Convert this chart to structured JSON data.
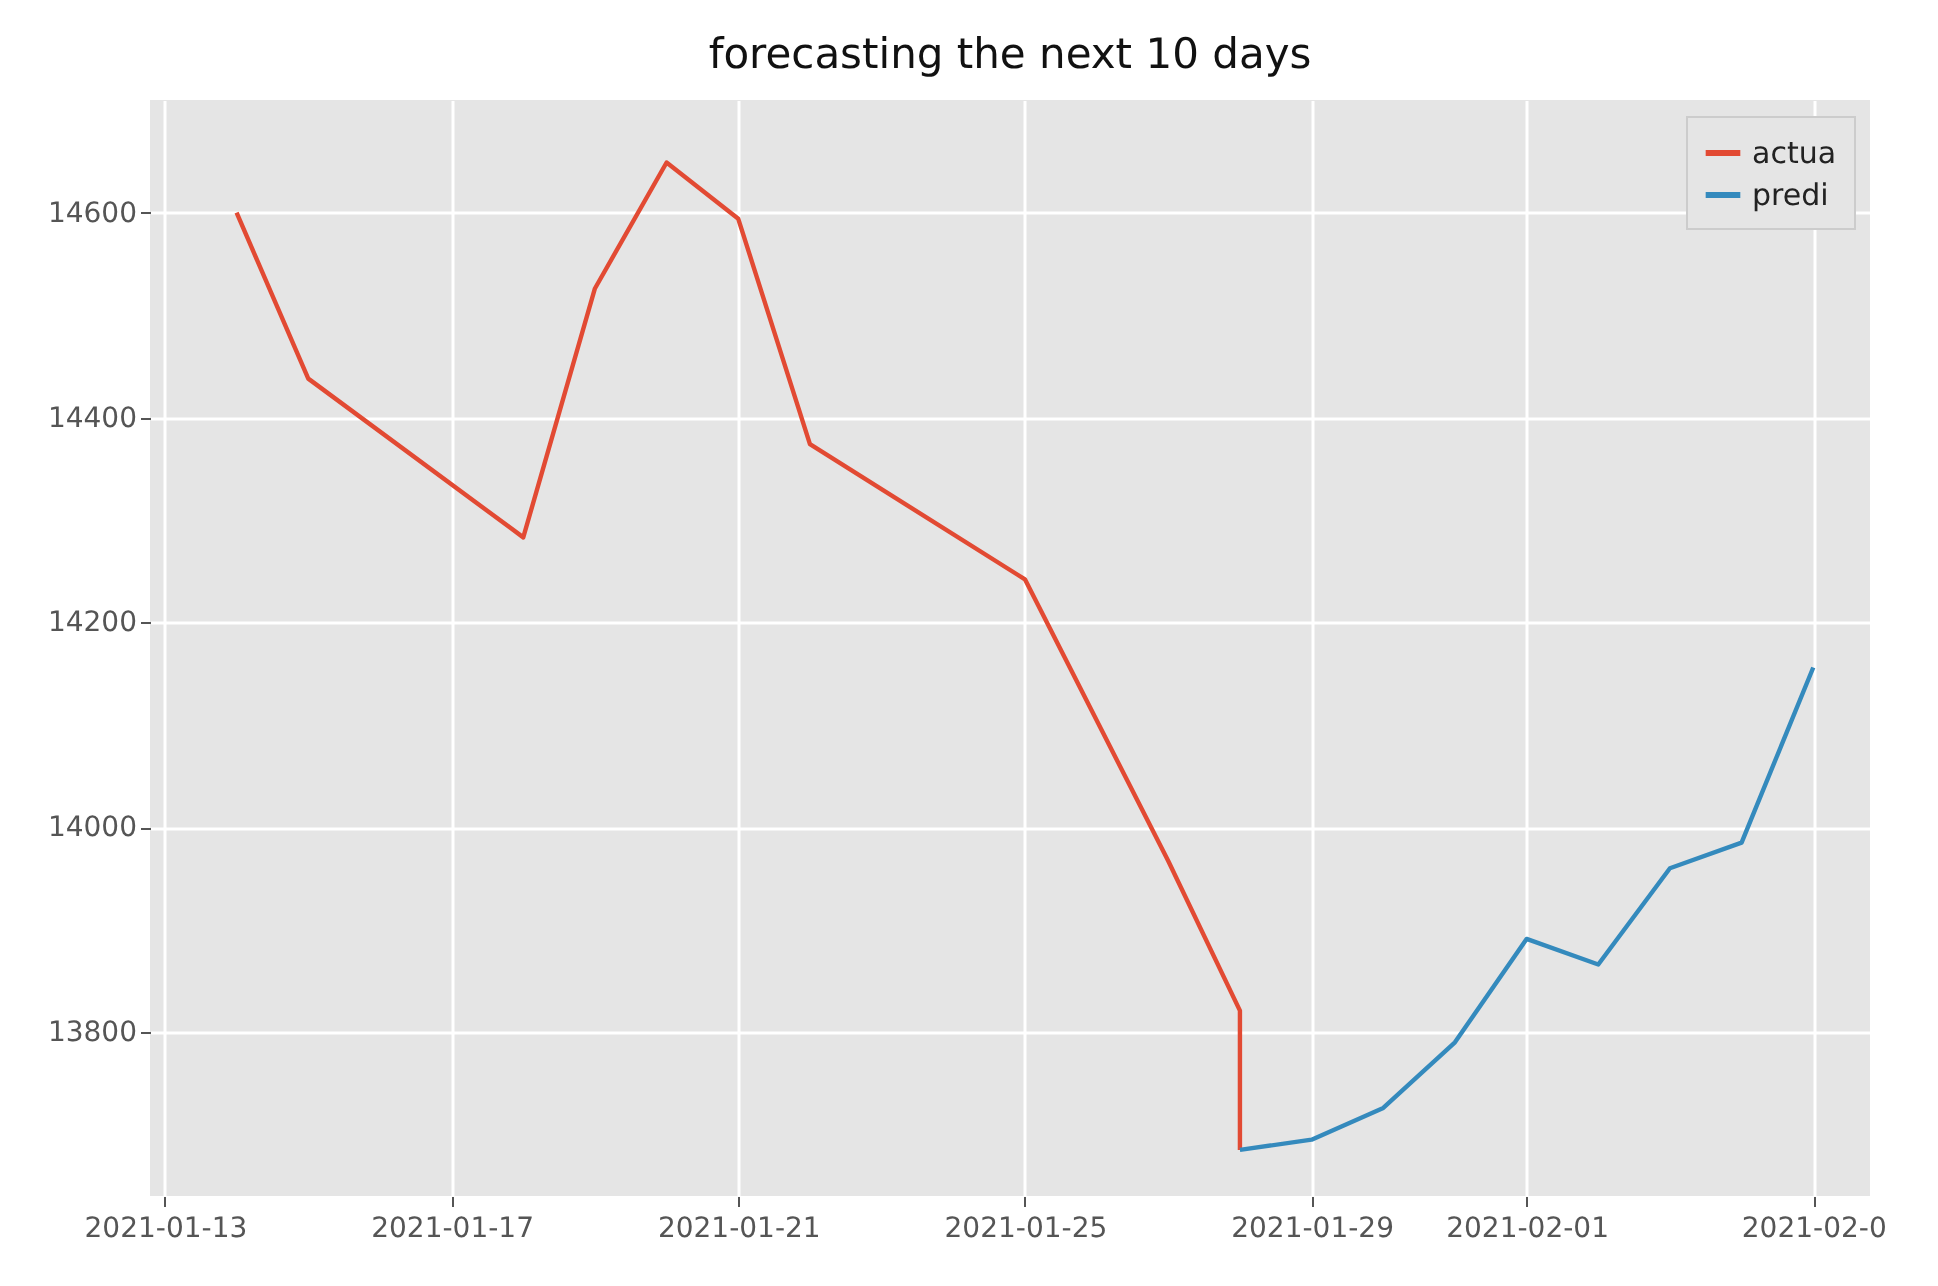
{
  "chart_data": {
    "type": "line",
    "title": "forecasting the next 10 days",
    "xlim": [
      "2021-01-12T19:00",
      "2021-02-05T19:00"
    ],
    "ylim": [
      13640,
      14710
    ],
    "xticks": [
      {
        "value": "2021-01-13",
        "label": "2021-01-13"
      },
      {
        "value": "2021-01-17",
        "label": "2021-01-17"
      },
      {
        "value": "2021-01-21",
        "label": "2021-01-21"
      },
      {
        "value": "2021-01-25",
        "label": "2021-01-25"
      },
      {
        "value": "2021-01-29",
        "label": "2021-01-29"
      },
      {
        "value": "2021-02-01",
        "label": "2021-02-01"
      },
      {
        "value": "2021-02-05",
        "label": "2021-02-0"
      }
    ],
    "yticks": [
      13800,
      14000,
      14200,
      14400,
      14600
    ],
    "grid": true,
    "legend": "top right",
    "series": [
      {
        "name": "actua",
        "color": "#e24a33",
        "x": [
          "2021-01-14",
          "2021-01-15",
          "2021-01-18",
          "2021-01-19",
          "2021-01-20",
          "2021-01-21",
          "2021-01-22",
          "2021-01-25",
          "2021-01-27",
          "2021-01-28",
          "2021-01-28"
        ],
        "values": [
          14600,
          14438,
          14283,
          14526,
          14649,
          14594,
          14374,
          14242,
          13967,
          13821,
          13685
        ]
      },
      {
        "name": "predi",
        "color": "#348abd",
        "x": [
          "2021-01-28",
          "2021-01-29",
          "2021-01-30",
          "2021-01-31",
          "2021-02-01",
          "2021-02-02",
          "2021-02-03",
          "2021-02-04",
          "2021-02-05"
        ],
        "values": [
          13685,
          13695,
          13726,
          13790,
          13891,
          13866,
          13960,
          13985,
          14156
        ]
      }
    ]
  }
}
